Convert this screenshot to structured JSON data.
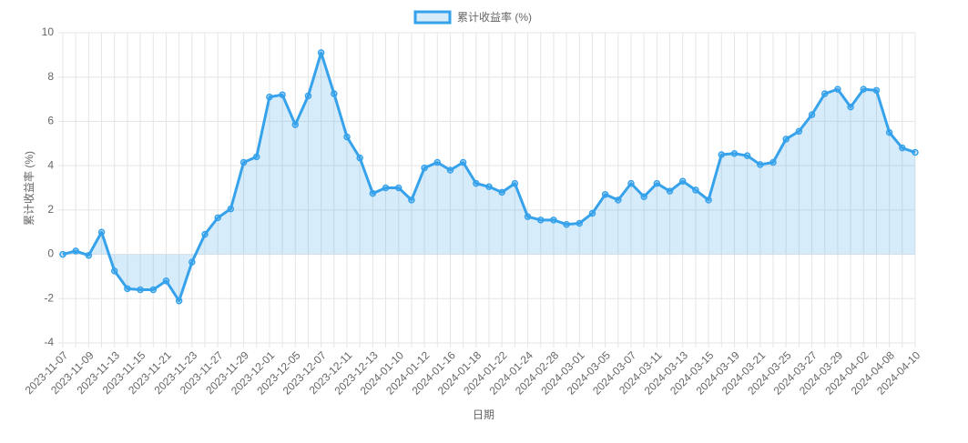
{
  "chart_data": {
    "type": "line",
    "x_label": "日期",
    "y_label": "累计收益率 (%)",
    "categories": [
      "2023-11-07",
      null,
      "2023-11-09",
      null,
      "2023-11-13",
      null,
      "2023-11-15",
      null,
      "2023-11-21",
      null,
      "2023-11-23",
      null,
      "2023-11-27",
      null,
      "2023-11-29",
      null,
      "2023-12-01",
      null,
      "2023-12-05",
      null,
      "2023-12-07",
      null,
      "2023-12-11",
      null,
      "2023-12-13",
      null,
      "2024-01-10",
      null,
      "2024-01-12",
      null,
      "2024-01-16",
      null,
      "2024-01-18",
      null,
      "2024-01-22",
      null,
      "2024-01-24",
      null,
      "2024-02-28",
      null,
      "2024-03-01",
      null,
      "2024-03-05",
      null,
      "2024-03-07",
      null,
      "2024-03-11",
      null,
      "2024-03-13",
      null,
      "2024-03-15",
      null,
      "2024-03-19",
      null,
      "2024-03-21",
      null,
      "2024-03-25",
      null,
      "2024-03-27",
      null,
      "2024-03-29",
      null,
      "2024-04-02",
      null,
      "2024-04-08",
      null,
      "2024-04-10"
    ],
    "series": [
      {
        "name": "累计收益率 (%)",
        "color": "#36a2eb",
        "fill": "rgba(54,162,235,0.2)",
        "values": [
          0,
          0.15,
          -0.05,
          1,
          -0.75,
          -1.55,
          -1.6,
          -1.6,
          -1.2,
          -2.1,
          -0.35,
          0.9,
          1.65,
          2.05,
          4.15,
          4.4,
          7.1,
          7.2,
          5.85,
          7.15,
          9.1,
          7.25,
          5.3,
          4.35,
          2.75,
          3.0,
          3.0,
          2.45,
          3.9,
          4.15,
          3.8,
          4.15,
          3.2,
          3.05,
          2.8,
          3.2,
          1.7,
          1.55,
          1.55,
          1.35,
          1.4,
          1.85,
          2.7,
          2.45,
          3.2,
          2.6,
          3.2,
          2.85,
          3.3,
          2.9,
          2.45,
          4.5,
          4.55,
          4.45,
          4.05,
          4.15,
          5.2,
          5.55,
          6.3,
          7.25,
          7.45,
          6.65,
          7.45,
          7.4,
          5.5,
          4.8,
          4.6
        ]
      }
    ],
    "ylim": [
      -4,
      10
    ],
    "yticks": [
      -4,
      -2,
      0,
      2,
      4,
      6,
      8,
      10
    ],
    "grid": true,
    "legend": "top"
  }
}
